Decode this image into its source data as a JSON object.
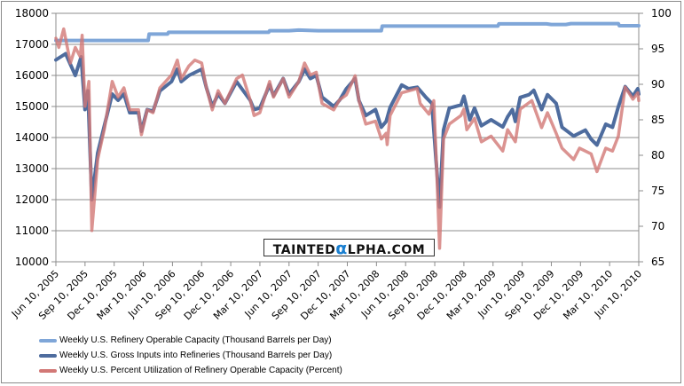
{
  "chart_data": {
    "type": "line",
    "title": "",
    "x_unit": "months since Jun 10, 2005",
    "x_tick_labels": [
      "Jun 10, 2005",
      "Sep 10, 2005",
      "Dec 10, 2005",
      "Mar 10, 2006",
      "Jun 10, 2006",
      "Sep 10, 2006",
      "Dec 10, 2006",
      "Mar 10, 2007",
      "Jun 10, 2007",
      "Sep 10, 2007",
      "Dec 10, 2007",
      "Mar 10, 2008",
      "Jun 10, 2008",
      "Sep 10, 2008",
      "Dec 10, 2008",
      "Mar 10, 2009",
      "Jun 10, 2009",
      "Sep 10, 2009",
      "Dec 10, 2009",
      "Mar 10, 2010",
      "Jun 10, 2010"
    ],
    "xlim": [
      0,
      60
    ],
    "y_left": {
      "ylim": [
        10000,
        18000
      ],
      "ticks": [
        10000,
        11000,
        12000,
        13000,
        14000,
        15000,
        16000,
        17000,
        18000
      ]
    },
    "y_right": {
      "ylim": [
        65,
        100
      ],
      "ticks": [
        65,
        70,
        75,
        80,
        85,
        90,
        95,
        100
      ]
    },
    "grid": true,
    "legend_placement": "bottom",
    "series": [
      {
        "name": "Weekly U.S. Refinery Operable Capacity  (Thousand Barrels per Day)",
        "axis": "left",
        "color": "#7fa6d8",
        "x": [
          0,
          9.5,
          9.6,
          11.5,
          11.6,
          21.9,
          22,
          24,
          25,
          27,
          33.5,
          33.6,
          45.5,
          45.6,
          50.5,
          51,
          52.5,
          53,
          57.9,
          58,
          60
        ],
        "y": [
          17125,
          17125,
          17330,
          17330,
          17390,
          17390,
          17440,
          17440,
          17460,
          17440,
          17440,
          17590,
          17590,
          17660,
          17660,
          17640,
          17640,
          17670,
          17670,
          17600,
          17600
        ]
      },
      {
        "name": "Weekly U.S. Gross Inputs into Refineries  (Thousand Barrels per Day)",
        "axis": "left",
        "color": "#4e6c9e",
        "x": [
          0,
          1,
          2,
          2.6,
          3,
          3.3,
          3.7,
          4.3,
          5,
          5.8,
          6.4,
          7,
          7.6,
          8.5,
          8.8,
          9.4,
          10,
          10.7,
          11.9,
          12.5,
          12.9,
          13.7,
          15,
          15.5,
          16.1,
          16.7,
          17.4,
          18.6,
          20,
          20.4,
          21,
          22,
          22.4,
          23.4,
          24,
          25,
          25.6,
          26.2,
          26.8,
          27.4,
          28.6,
          29.2,
          29.9,
          30.8,
          31.2,
          31.9,
          32.9,
          33.5,
          34,
          34.4,
          35.6,
          36.3,
          37.2,
          38.1,
          38.7,
          39.2,
          39.5,
          39.9,
          40.5,
          41.7,
          42,
          42.6,
          43.1,
          43.8,
          44.8,
          46,
          46.5,
          47,
          47.3,
          47.8,
          48.7,
          49.2,
          50,
          50.6,
          51.5,
          52.1,
          53.3,
          54.5,
          55.1,
          55.7,
          56.6,
          57.3,
          57.9,
          58.6,
          59.4,
          59.9,
          60
        ],
        "y": [
          16500,
          16700,
          16000,
          16600,
          14900,
          15500,
          12000,
          13500,
          14400,
          15400,
          15200,
          15400,
          14800,
          14800,
          14200,
          14900,
          14850,
          15500,
          15800,
          16200,
          15800,
          16000,
          16200,
          15600,
          15000,
          15400,
          15100,
          15800,
          15200,
          14900,
          14950,
          15700,
          15350,
          15900,
          15400,
          15800,
          16200,
          15900,
          16000,
          15300,
          15000,
          15200,
          15570,
          15900,
          15190,
          14710,
          14900,
          14330,
          14520,
          14970,
          15690,
          15570,
          15620,
          15290,
          15100,
          13000,
          11760,
          14240,
          14950,
          15050,
          15330,
          14570,
          14950,
          14380,
          14570,
          14340,
          14670,
          14900,
          14520,
          15290,
          15380,
          15520,
          14900,
          15380,
          15100,
          14330,
          14050,
          14240,
          13950,
          13760,
          14430,
          14330,
          14990,
          15640,
          15330,
          15570,
          15400
        ]
      },
      {
        "name": "Weekly U.S. Percent Utilization of Refinery Operable Capacity  (Percent)",
        "axis": "right",
        "color": "#d27876",
        "x": [
          0,
          0.3,
          0.8,
          1.5,
          2,
          2.5,
          2.7,
          3,
          3.4,
          3.7,
          4.3,
          5,
          5.8,
          6.4,
          7,
          7.6,
          8.5,
          8.8,
          9.4,
          10,
          10.7,
          11.9,
          12.5,
          12.9,
          13.7,
          14.3,
          15,
          15.5,
          16.1,
          16.7,
          17.4,
          18.6,
          19.2,
          20,
          20.4,
          21,
          22,
          22.4,
          23.4,
          24,
          25,
          25.6,
          26.2,
          26.8,
          27.4,
          28.6,
          29.2,
          29.9,
          30.8,
          31.2,
          31.9,
          32.9,
          33.5,
          34,
          34.1,
          34.4,
          35.6,
          37.2,
          37.5,
          38.4,
          38.9,
          39.2,
          39.5,
          39.9,
          40.5,
          41.7,
          42,
          42.3,
          43.1,
          43.8,
          44.8,
          46,
          46.5,
          47.3,
          47.8,
          49,
          50,
          50.6,
          51.5,
          52.1,
          53.3,
          53.9,
          55.1,
          55.7,
          56.6,
          57.3,
          57.9,
          58.6,
          59.4,
          59.9,
          60
        ],
        "y": [
          96.5,
          95.2,
          97.8,
          93.0,
          95.2,
          93.9,
          96.9,
          86.9,
          90.4,
          69.4,
          79.4,
          83.8,
          90.4,
          88.2,
          89.5,
          86.4,
          86.4,
          82.9,
          86.4,
          86.0,
          89.5,
          91.3,
          93.4,
          90.8,
          92.6,
          93.4,
          93.0,
          89.5,
          86.4,
          89.1,
          87.3,
          90.8,
          91.3,
          87.8,
          85.6,
          86.0,
          90.4,
          88.2,
          90.8,
          88.2,
          90.4,
          93.0,
          91.3,
          91.7,
          87.3,
          86.4,
          87.8,
          88.5,
          91.2,
          87.7,
          84.4,
          84.8,
          82.3,
          83.1,
          81.5,
          85.6,
          88.8,
          89.4,
          87.3,
          85.8,
          87.7,
          78.1,
          66.9,
          82.3,
          84.4,
          85.6,
          86.5,
          83.6,
          85.2,
          81.9,
          82.7,
          80.6,
          83.6,
          81.9,
          86.5,
          87.7,
          83.9,
          86.0,
          83.1,
          81.0,
          79.4,
          81.0,
          80.2,
          77.7,
          81.0,
          80.6,
          82.7,
          89.6,
          87.9,
          88.8,
          87.7
        ]
      }
    ]
  },
  "watermark": {
    "text_left": "TAINTED",
    "alpha": "α",
    "text_right": "LPHA.COM"
  }
}
